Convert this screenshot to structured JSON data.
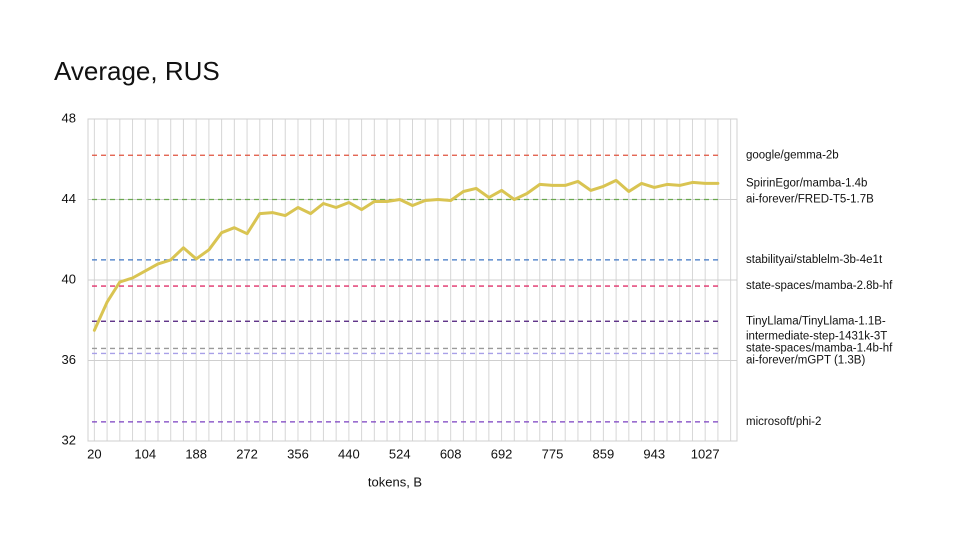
{
  "chart_data": {
    "type": "line",
    "title": "Average, RUS",
    "x_label": "tokens, B",
    "categories": [
      20,
      null,
      null,
      null,
      104,
      null,
      null,
      null,
      188,
      null,
      null,
      null,
      272,
      null,
      null,
      null,
      356,
      null,
      null,
      null,
      440,
      null,
      null,
      null,
      524,
      null,
      null,
      null,
      608,
      null,
      null,
      null,
      692,
      null,
      null,
      null,
      775,
      null,
      null,
      null,
      859,
      null,
      null,
      null,
      943,
      null,
      null,
      null,
      1027,
      null,
      null
    ],
    "ylim": [
      32,
      48
    ],
    "yticks": [
      32,
      36,
      40,
      44,
      48
    ],
    "grid": true,
    "series": [
      {
        "name": "SpirinEgor/mamba-1.4b",
        "color": "#d9c452",
        "values": [
          37.5,
          38.9,
          39.9,
          40.1,
          40.45,
          40.8,
          41.0,
          41.6,
          41.05,
          41.5,
          42.35,
          42.6,
          42.3,
          43.3,
          43.35,
          43.2,
          43.6,
          43.3,
          43.8,
          43.6,
          43.85,
          43.5,
          43.9,
          43.9,
          44.0,
          43.7,
          43.95,
          44.0,
          43.95,
          44.4,
          44.55,
          44.1,
          44.45,
          44.0,
          44.3,
          44.75,
          44.7,
          44.7,
          44.9,
          44.45,
          44.65,
          44.95,
          44.4,
          44.8,
          44.6,
          44.75,
          44.7,
          44.85,
          44.8,
          44.8,
          null
        ]
      }
    ],
    "reference_lines": [
      {
        "name": "google/gemma-2b",
        "color": "#e0533f",
        "value": 46.2
      },
      {
        "name": "ai-forever/FRED-T5-1.7B",
        "color": "#6aa84f",
        "value": 44.0
      },
      {
        "name": "stabilityai/stablelm-3b-4e1t",
        "color": "#3d75c4",
        "value": 41.0
      },
      {
        "name": "state-spaces/mamba-2.8b-hf",
        "color": "#e0306a",
        "value": 39.7
      },
      {
        "name": "TinyLlama/TinyLlama-1.1B-intermediate-step-1431k-3T",
        "color": "#4b1a7a",
        "value": 37.95
      },
      {
        "name": "state-spaces/mamba-1.4b-hf",
        "color": "#9a9a9a",
        "value": 36.6
      },
      {
        "name": "ai-forever/mGPT (1.3B)",
        "color": "#a8a0e8",
        "value": 36.35
      },
      {
        "name": "microsoft/phi-2",
        "color": "#7a3fc0",
        "value": 32.95
      }
    ]
  }
}
